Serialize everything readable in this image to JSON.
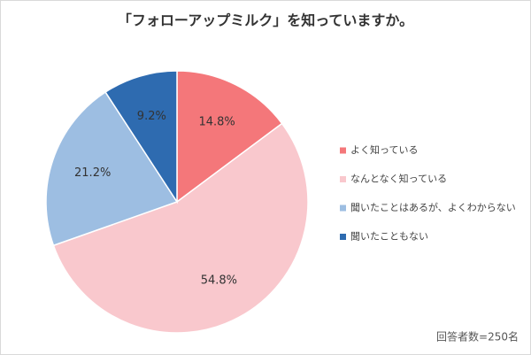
{
  "chart_data": {
    "type": "pie",
    "title": "「フォローアップミルク」を知っていますか。",
    "categories": [
      "よく知っている",
      "なんとなく知っている",
      "聞いたことはあるが、よくわからない",
      "聞いたこともない"
    ],
    "values": [
      14.8,
      54.8,
      21.2,
      9.2
    ],
    "value_labels": [
      "14.8%",
      "54.8%",
      "21.2%",
      "9.2%"
    ],
    "colors": [
      "#f4777a",
      "#f9c8cd",
      "#9dbee2",
      "#2e6bb0"
    ],
    "legend": "right",
    "annotation": "回答者数=250名"
  }
}
